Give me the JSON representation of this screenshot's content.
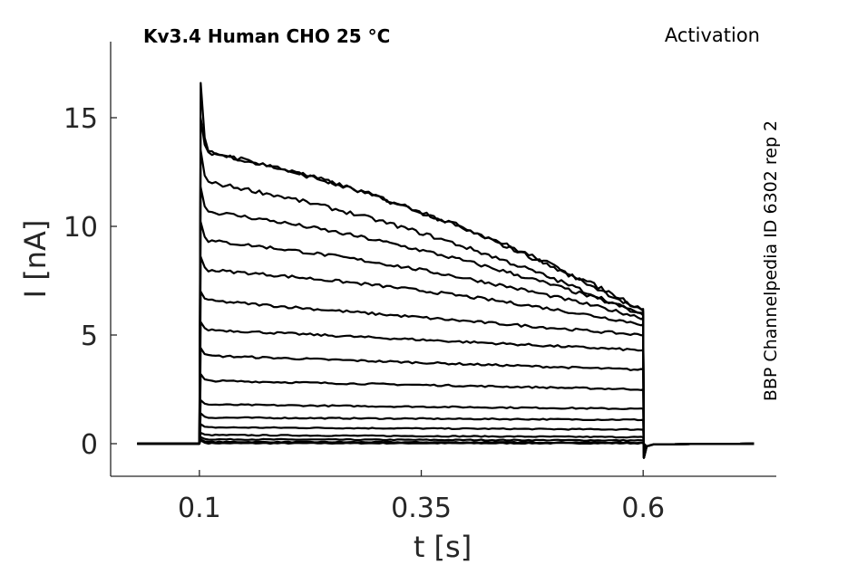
{
  "chart_data": {
    "type": "line",
    "title": "Kv3.4  Human  CHO  25 °C",
    "protocol": "Activation",
    "source": "BBP Channelpedia ID 6302 rep 2",
    "xlabel": "t [s]",
    "ylabel": "I [nA]",
    "xlim": [
      0.0,
      0.75
    ],
    "ylim": [
      -1.5,
      18.5
    ],
    "xticks": [
      0.1,
      0.35,
      0.6
    ],
    "xtick_labels": [
      "0.1",
      "0.35",
      "0.6"
    ],
    "yticks": [
      0,
      5,
      10,
      15
    ],
    "ytick_labels": [
      "0",
      "5",
      "10",
      "15"
    ],
    "grid": false,
    "legend": "none",
    "step_on": 0.1,
    "step_off": 0.6,
    "trace_range": [
      0.03,
      0.725
    ],
    "series": [
      {
        "peak": 0.15,
        "start": 0.02,
        "end": 0.02
      },
      {
        "peak": 0.2,
        "start": 0.08,
        "end": 0.05
      },
      {
        "peak": 0.3,
        "start": 0.2,
        "end": 0.15
      },
      {
        "peak": 0.5,
        "start": 0.4,
        "end": 0.3
      },
      {
        "peak": 0.9,
        "start": 0.75,
        "end": 0.65
      },
      {
        "peak": 1.4,
        "start": 1.2,
        "end": 1.1
      },
      {
        "peak": 2.0,
        "start": 1.8,
        "end": 1.6
      },
      {
        "peak": 3.2,
        "start": 2.9,
        "end": 2.5
      },
      {
        "peak": 4.4,
        "start": 4.05,
        "end": 3.4
      },
      {
        "peak": 5.6,
        "start": 5.25,
        "end": 4.3
      },
      {
        "peak": 7.0,
        "start": 6.6,
        "end": 5.0
      },
      {
        "peak": 8.6,
        "start": 8.0,
        "end": 5.5
      },
      {
        "peak": 10.2,
        "start": 9.35,
        "end": 5.8
      },
      {
        "peak": 11.8,
        "start": 10.7,
        "end": 6.0
      },
      {
        "peak": 13.5,
        "start": 12.05,
        "end": 5.9
      },
      {
        "peak": 15.0,
        "start": 13.45,
        "end": 6.1
      },
      {
        "peak": 16.6,
        "start": 13.45,
        "end": 6.2
      }
    ],
    "tail_dip": -0.65
  }
}
